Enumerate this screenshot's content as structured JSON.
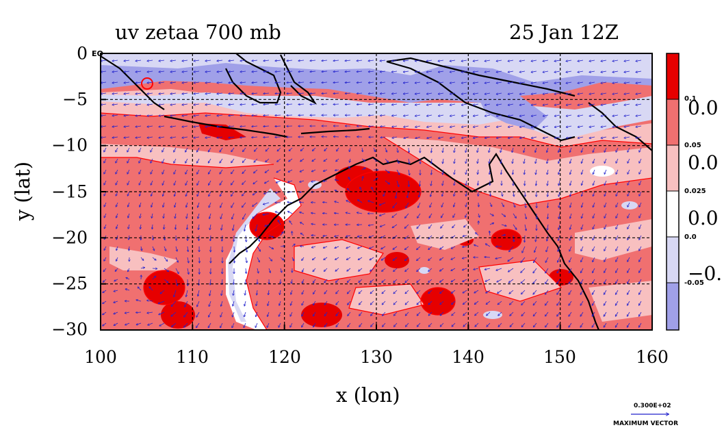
{
  "header": {
    "left_title": "uv zetaa 700 mb",
    "right_title": "25 Jan 12Z"
  },
  "axes": {
    "xlabel": "x (lon)",
    "ylabel": "y (lat)",
    "x_ticks": [
      "100",
      "110",
      "120",
      "130",
      "140",
      "150",
      "160"
    ],
    "y_ticks": [
      "0",
      "−5",
      "−10",
      "−15",
      "−20",
      "−25",
      "−30"
    ],
    "corner_label": "EQ",
    "x_range": [
      100,
      160
    ],
    "y_range": [
      -30,
      0
    ],
    "grid": true,
    "grid_x": [
      110,
      120,
      130,
      140,
      150
    ],
    "grid_y": [
      -5,
      -10,
      -15,
      -20,
      -25
    ]
  },
  "colorbar": {
    "levels": [
      "0.1",
      "0.05",
      "0.025",
      "0.0",
      "-0.05"
    ],
    "big_labels": [
      "0.0",
      "0.0",
      "0.0",
      "−0."
    ],
    "colors": [
      "#e60000",
      "#f07070",
      "#f8c0c0",
      "#ffffff",
      "#d8d8f4",
      "#a0a0e8"
    ]
  },
  "vector_legend": {
    "value": "0.300E+02",
    "label": "MAXIMUM VECTOR"
  },
  "colors": {
    "strong_pos": "#e60000",
    "pos": "#f07070",
    "weak_pos": "#f8c0c0",
    "weak_neg": "#d8d8f4",
    "neg": "#a0a0e8",
    "contour": "#ff0000",
    "vector": "#2222cc",
    "coast": "#000000"
  }
}
